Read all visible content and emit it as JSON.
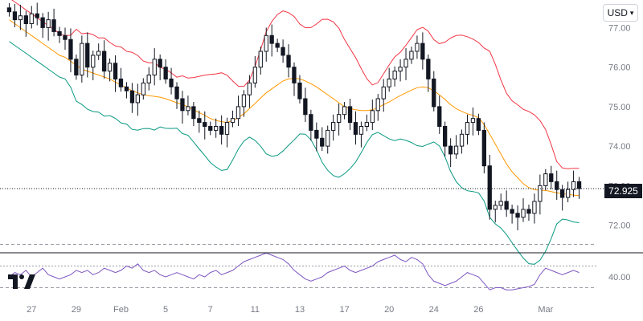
{
  "toolbar": {
    "currency_label": "USD"
  },
  "last_price_label": "72.925",
  "icons": {
    "currency_dropdown": "chevron-down-icon",
    "logo": "tradingview-logo-icon"
  },
  "colors": {
    "up_candle": "#ffffff",
    "down_candle": "#131722",
    "upper_band": "#f23645",
    "middle_band": "#ff9800",
    "lower_band": "#089981",
    "rsi_line": "#7e57c2",
    "grid_text": "#787b86"
  },
  "chart_data": [
    {
      "type": "candlestick",
      "title": "",
      "xlabel": "",
      "ylabel": "",
      "ylim": [
        71.3,
        77.7
      ],
      "y_ticks": [
        "77.00",
        "76.00",
        "75.00",
        "74.00",
        "73.00",
        "72.00"
      ],
      "x_ticks": [
        {
          "label": "27",
          "index": 4
        },
        {
          "label": "29",
          "index": 12
        },
        {
          "label": "Feb",
          "index": 20
        },
        {
          "label": "5",
          "index": 28
        },
        {
          "label": "7",
          "index": 36
        },
        {
          "label": "11",
          "index": 44
        },
        {
          "label": "13",
          "index": 52
        },
        {
          "label": "17",
          "index": 60
        },
        {
          "label": "20",
          "index": 68
        },
        {
          "label": "24",
          "index": 76
        },
        {
          "label": "26",
          "index": 84
        },
        {
          "label": "Mar",
          "index": 96
        }
      ],
      "last_price": 72.925,
      "close": [
        77.4,
        77.2,
        77.3,
        77.1,
        77.35,
        77.25,
        77.0,
        77.2,
        76.9,
        76.8,
        76.7,
        76.2,
        75.8,
        76.6,
        76.0,
        76.3,
        76.4,
        75.9,
        76.1,
        75.7,
        75.5,
        75.4,
        75.1,
        75.3,
        75.6,
        75.8,
        76.2,
        76.0,
        75.7,
        75.5,
        75.2,
        74.9,
        75.0,
        74.7,
        74.6,
        74.5,
        74.4,
        74.5,
        74.3,
        74.6,
        74.7,
        75.0,
        75.3,
        75.6,
        76.0,
        76.4,
        76.8,
        76.6,
        76.5,
        76.3,
        76.0,
        75.6,
        75.2,
        74.8,
        74.4,
        74.2,
        74.0,
        74.4,
        74.6,
        74.8,
        75.0,
        74.6,
        74.3,
        74.5,
        74.6,
        74.9,
        75.2,
        75.5,
        75.7,
        75.9,
        76.0,
        76.2,
        76.4,
        76.6,
        76.2,
        75.7,
        75.0,
        74.5,
        74.0,
        73.8,
        74.0,
        74.3,
        74.6,
        74.7,
        74.4,
        73.5,
        72.4,
        72.5,
        72.6,
        72.4,
        72.3,
        72.2,
        72.4,
        72.3,
        72.6,
        73.0,
        73.3,
        73.1,
        72.9,
        72.7,
        72.9,
        73.1,
        72.925
      ],
      "series": [
        {
          "name": "",
          "values": [
            77.2,
            77.1,
            77.0,
            76.9,
            76.8,
            76.7,
            76.6,
            76.5,
            76.4,
            76.3,
            76.25,
            76.15,
            76.05,
            75.95,
            75.9,
            75.85,
            75.8,
            75.75,
            75.7,
            75.62,
            75.55,
            75.48,
            75.4,
            75.35,
            75.3,
            75.28,
            75.26,
            75.24,
            75.2,
            75.15,
            75.1,
            75.05,
            75.0,
            74.92,
            74.85,
            74.78,
            74.7,
            74.65,
            74.62,
            74.6,
            74.65,
            74.72,
            74.82,
            74.95,
            75.08,
            75.22,
            75.35,
            75.45,
            75.55,
            75.65,
            75.7,
            75.72,
            75.7,
            75.65,
            75.58,
            75.5,
            75.4,
            75.3,
            75.2,
            75.1,
            75.0,
            74.95,
            74.92,
            74.9,
            74.9,
            74.92,
            74.98,
            75.05,
            75.12,
            75.2,
            75.28,
            75.35,
            75.42,
            75.48,
            75.5,
            75.48,
            75.4,
            75.3,
            75.18,
            75.05,
            74.95,
            74.88,
            74.82,
            74.78,
            74.72,
            74.55,
            74.3,
            74.05,
            73.8,
            73.55,
            73.35,
            73.2,
            73.05,
            72.95,
            72.9,
            72.88,
            72.88,
            72.85,
            72.82,
            72.8,
            72.78,
            72.76,
            72.75
          ]
        }
      ],
      "rsi": {
        "levels": [
          70,
          50,
          30
        ],
        "visible_tick": "40.00",
        "values": [
          40,
          44,
          42,
          46,
          40,
          44,
          48,
          42,
          40,
          38,
          40,
          42,
          46,
          44,
          46,
          42,
          44,
          48,
          46,
          44,
          46,
          50,
          48,
          52,
          46,
          44,
          46,
          42,
          40,
          42,
          44,
          42,
          40,
          38,
          42,
          40,
          44,
          46,
          42,
          44,
          46,
          50,
          54,
          56,
          58,
          60,
          62,
          60,
          58,
          56,
          52,
          46,
          42,
          38,
          36,
          38,
          40,
          44,
          46,
          48,
          50,
          46,
          44,
          46,
          48,
          50,
          54,
          56,
          58,
          60,
          56,
          54,
          58,
          56,
          52,
          42,
          36,
          34,
          32,
          34,
          36,
          40,
          44,
          42,
          40,
          34,
          28,
          30,
          30,
          28,
          28,
          29,
          30,
          31,
          33,
          42,
          48,
          46,
          44,
          42,
          44,
          46,
          44
        ]
      }
    }
  ]
}
